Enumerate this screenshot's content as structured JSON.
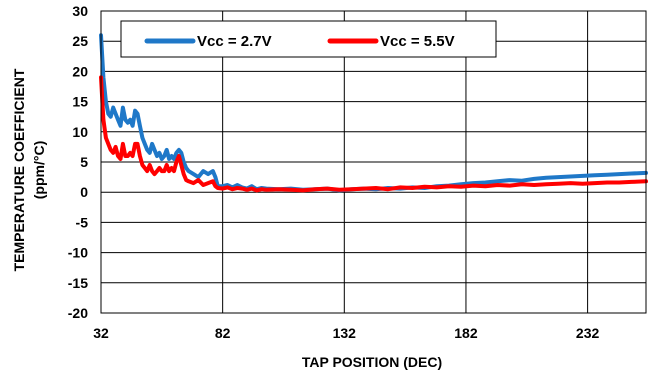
{
  "chart_data": {
    "type": "line",
    "title": "",
    "xlabel": "TAP POSITION (DEC)",
    "ylabel_line1": "TEMPERATURE COEFFICIENT",
    "ylabel_line2": "(ppm/°C)",
    "xlim": [
      32,
      256
    ],
    "ylim": [
      -20,
      30
    ],
    "x_ticks": [
      32,
      82,
      132,
      182,
      232
    ],
    "x_tick_labels": [
      "32",
      "82",
      "132",
      "182",
      "232"
    ],
    "y_ticks": [
      -20,
      -15,
      -10,
      -5,
      0,
      5,
      10,
      15,
      20,
      25,
      30
    ],
    "y_tick_labels": [
      "-20",
      "-15",
      "-10",
      "-5",
      "0",
      "5",
      "10",
      "15",
      "20",
      "25",
      "30"
    ],
    "grid": true,
    "legend_position": "top",
    "series": [
      {
        "name": "Vcc = 2.7V",
        "color": "#1f78c8",
        "x": [
          32,
          33,
          34,
          35,
          36,
          37,
          38,
          39,
          40,
          41,
          42,
          43,
          44,
          45,
          46,
          47,
          48,
          49,
          50,
          51,
          52,
          53,
          54,
          55,
          56,
          57,
          58,
          59,
          60,
          61,
          62,
          63,
          64,
          65,
          66,
          67,
          68,
          70,
          72,
          74,
          76,
          78,
          79,
          80,
          82,
          84,
          86,
          88,
          90,
          92,
          94,
          96,
          98,
          100,
          105,
          110,
          115,
          120,
          125,
          130,
          135,
          140,
          145,
          150,
          155,
          160,
          165,
          170,
          175,
          180,
          185,
          190,
          195,
          200,
          205,
          210,
          215,
          220,
          225,
          230,
          235,
          240,
          245,
          250,
          256
        ],
        "y": [
          26,
          19,
          15,
          13,
          12.5,
          14,
          13,
          12,
          11,
          14,
          12,
          11.5,
          12,
          11,
          13.5,
          13,
          11,
          9,
          8,
          7,
          6.5,
          8,
          7,
          6,
          6.5,
          5.5,
          6,
          7,
          5.5,
          6,
          5.5,
          6.5,
          7,
          6.5,
          5,
          4,
          3.5,
          3,
          2.5,
          3.5,
          3,
          3.5,
          2.5,
          1,
          1,
          1.2,
          0.8,
          1.2,
          0.8,
          0.6,
          1,
          0.5,
          0.7,
          0.6,
          0.5,
          0.6,
          0.4,
          0.5,
          0.6,
          0.3,
          0.5,
          0.6,
          0.5,
          0.7,
          0.6,
          0.8,
          0.7,
          1,
          1.1,
          1.3,
          1.5,
          1.6,
          1.8,
          2,
          1.9,
          2.2,
          2.4,
          2.5,
          2.6,
          2.7,
          2.8,
          2.9,
          3,
          3.1,
          3.2
        ]
      },
      {
        "name": "Vcc = 5.5V",
        "color": "#ff0000",
        "x": [
          32,
          33,
          34,
          35,
          36,
          37,
          38,
          39,
          40,
          41,
          42,
          43,
          44,
          45,
          46,
          47,
          48,
          49,
          50,
          51,
          52,
          53,
          54,
          55,
          56,
          57,
          58,
          59,
          60,
          61,
          62,
          63,
          64,
          65,
          66,
          67,
          68,
          70,
          72,
          74,
          76,
          78,
          79,
          80,
          82,
          84,
          86,
          88,
          90,
          92,
          94,
          96,
          98,
          100,
          105,
          110,
          115,
          120,
          125,
          130,
          135,
          140,
          145,
          150,
          155,
          160,
          165,
          170,
          175,
          180,
          185,
          190,
          195,
          200,
          205,
          210,
          215,
          220,
          225,
          230,
          235,
          240,
          245,
          250,
          256
        ],
        "y": [
          19,
          12,
          9,
          8,
          7,
          6.5,
          7.5,
          6,
          5.5,
          8,
          6,
          6,
          6.5,
          6,
          8,
          8,
          6,
          4.5,
          4,
          3.5,
          4.5,
          3.5,
          3,
          3.5,
          4,
          3.5,
          3.5,
          4.5,
          3.5,
          4,
          3.5,
          5,
          6,
          4.5,
          3,
          2,
          1.8,
          1.5,
          2,
          1.2,
          1.5,
          1.8,
          1,
          0.7,
          0.6,
          0.8,
          0.5,
          0.7,
          0.6,
          0.4,
          0.6,
          0.3,
          0.5,
          0.4,
          0.5,
          0.4,
          0.3,
          0.5,
          0.6,
          0.4,
          0.5,
          0.6,
          0.7,
          0.5,
          0.8,
          0.7,
          0.9,
          0.8,
          1,
          0.9,
          1.1,
          1,
          1.2,
          1.1,
          1.3,
          1.2,
          1.3,
          1.4,
          1.5,
          1.4,
          1.5,
          1.6,
          1.6,
          1.7,
          1.8
        ]
      }
    ]
  }
}
